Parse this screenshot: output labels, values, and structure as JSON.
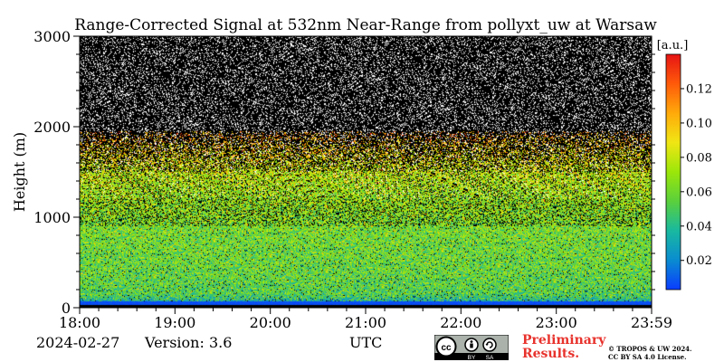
{
  "chart_data": {
    "type": "heatmap",
    "title": "Range-Corrected Signal at 532nm Near-Range from pollyxt_uw at Warsaw",
    "xlabel": "UTC",
    "ylabel": "Height (m)",
    "x_ticks": [
      "18:00",
      "19:00",
      "20:00",
      "21:00",
      "22:00",
      "23:00",
      "23:59"
    ],
    "y_ticks": [
      "0",
      "1000",
      "2000",
      "3000"
    ],
    "ylim": [
      0,
      3000
    ],
    "colorbar": {
      "label": "[a.u.]",
      "ticks": [
        "0.02",
        "0.04",
        "0.06",
        "0.08",
        "0.10",
        "0.12"
      ],
      "range": [
        0.003,
        0.14
      ],
      "colormap": [
        "#0a3cff",
        "#0a8cd0",
        "#19b9a0",
        "#5ad03c",
        "#9be60a",
        "#f0e614",
        "#ffaa0a",
        "#ff5a0a",
        "#e61414"
      ]
    },
    "signal_profile": [
      {
        "height": 0,
        "value": 0.0
      },
      {
        "height": 50,
        "value": 0.03
      },
      {
        "height": 150,
        "value": 0.052
      },
      {
        "height": 400,
        "value": 0.057
      },
      {
        "height": 800,
        "value": 0.06
      },
      {
        "height": 1200,
        "value": 0.068
      },
      {
        "height": 1500,
        "value": 0.078
      },
      {
        "height": 1800,
        "value": 0.095
      },
      {
        "height": 1950,
        "value": 0.11
      }
    ],
    "noise_above_height": 1950
  },
  "footer": {
    "date": "2024-02-27",
    "version": "Version: 3.6",
    "utc_label": "UTC",
    "cc_badge": {
      "cc": "cc",
      "by": "BY",
      "sa": "SA"
    },
    "preliminary_line1": "Preliminary",
    "preliminary_line2": "Results.",
    "license_line1": "© TROPOS & UW 2024.",
    "license_line2": "CC BY SA 4.0 License."
  }
}
